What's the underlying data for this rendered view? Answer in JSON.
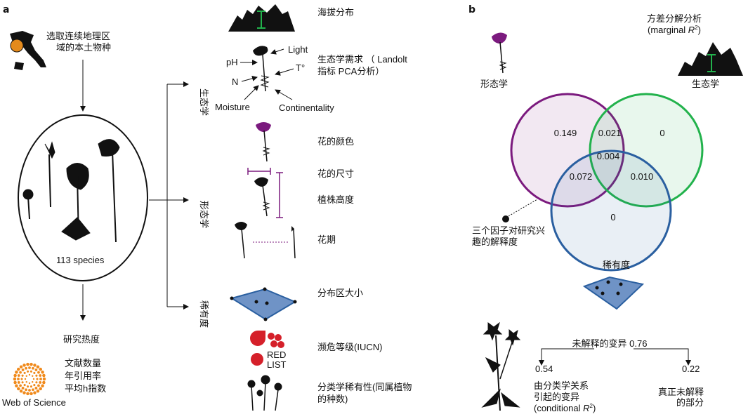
{
  "panel_a": {
    "label": "a",
    "selection_text": [
      "选取连续地理区",
      "域的本土物种"
    ],
    "species_count": "113 species",
    "research_popularity": "研究热度",
    "metrics": [
      "文献数量",
      "年引用率",
      "平均h指数"
    ],
    "wos_label": "Web of Science",
    "groups": {
      "ecology": "生态学",
      "morphology": "形态学",
      "rarity": "稀有度"
    },
    "traits": {
      "elevation": "海拔分布",
      "ecological_needs": [
        "生态学需求 （ Landolt",
        "指标 PCA分析）"
      ],
      "factors": {
        "light": "Light",
        "ph": "pH",
        "temperature": "T°",
        "n": "N",
        "moisture": "Moisture",
        "continentality": "Continentality"
      },
      "flower_color": "花的颜色",
      "flower_size": "花的尺寸",
      "plant_height": "植株高度",
      "flowering_period": "花期",
      "range_size": "分布区大小",
      "red_list_logo": [
        "RED",
        "LIST"
      ],
      "iucn": "濒危等级(IUCN)",
      "taxonomic_rarity": [
        "分类学稀有性(同属植物",
        "的种数)"
      ]
    }
  },
  "panel_b": {
    "label": "b",
    "title": [
      "方差分解分析",
      "(marginal ",
      "R",
      "2",
      ")"
    ],
    "morphology": "形态学",
    "ecology": "生态学",
    "rarity": "稀有度",
    "venn": {
      "morphology_only": "0.149",
      "morph_eco": "0.021",
      "ecology_only": "0",
      "all_three": "0.004",
      "morph_rarity": "0.072",
      "eco_rarity": "0.010",
      "rarity_only": "0"
    },
    "venn_colors": {
      "morphology": "#7b1a7e",
      "ecology": "#22b24c",
      "rarity": "#2a5fa0"
    },
    "explained_note": [
      "三个因子对研究兴",
      "趣的解释度"
    ],
    "unexplained": "未解释的变异 0.76",
    "conditional_value": "0.54",
    "residual_value": "0.22",
    "conditional_text": [
      "由分类学关系",
      "引起的变异",
      "(conditional ",
      "R",
      "2",
      ")"
    ],
    "residual_text": [
      "真正未解释",
      "的部分"
    ]
  }
}
